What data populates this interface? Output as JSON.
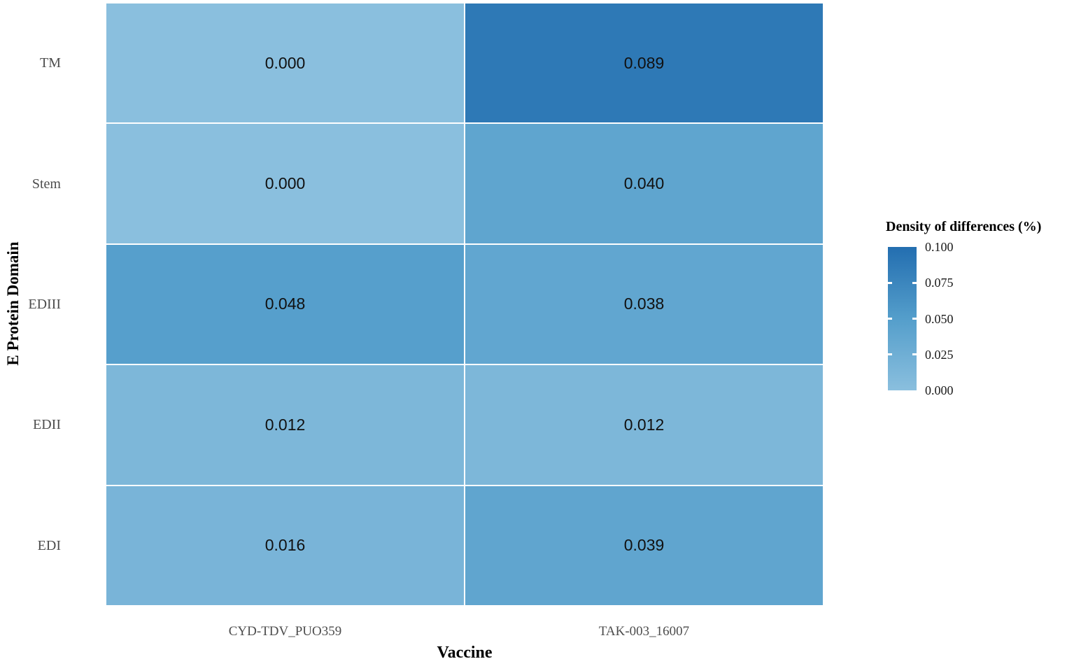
{
  "chart_data": {
    "type": "heatmap",
    "xlabel": "Vaccine",
    "ylabel": "E Protein Domain",
    "x_categories": [
      "CYD-TDV_PUO359",
      "TAK-003_16007"
    ],
    "y_categories": [
      "TM",
      "Stem",
      "EDIII",
      "EDII",
      "EDI"
    ],
    "values": [
      [
        0.0,
        0.089
      ],
      [
        0.0,
        0.04
      ],
      [
        0.048,
        0.038
      ],
      [
        0.012,
        0.012
      ],
      [
        0.016,
        0.039
      ]
    ],
    "cell_labels": [
      [
        "0.000",
        "0.089"
      ],
      [
        "0.000",
        "0.040"
      ],
      [
        "0.048",
        "0.038"
      ],
      [
        "0.012",
        "0.012"
      ],
      [
        "0.016",
        "0.039"
      ]
    ],
    "value_range": [
      0,
      0.1
    ],
    "grid": false,
    "legend": {
      "title": "Density of differences (%)",
      "position": "right",
      "tick_labels": [
        "0.100",
        "0.075",
        "0.050",
        "0.025",
        "0.000"
      ],
      "tick_values": [
        0.1,
        0.075,
        0.05,
        0.025,
        0.0
      ],
      "gradient_stops": [
        {
          "value": 0.0,
          "color": "#8abfde"
        },
        {
          "value": 0.05,
          "color": "#549ecb"
        },
        {
          "value": 0.1,
          "color": "#236eb0"
        }
      ]
    }
  },
  "colors": {
    "background": "#ffffff",
    "cell_border": "#ffffff",
    "axis_text": "#4d4d4d",
    "title_text": "#000000",
    "cell_text": "#111111"
  }
}
